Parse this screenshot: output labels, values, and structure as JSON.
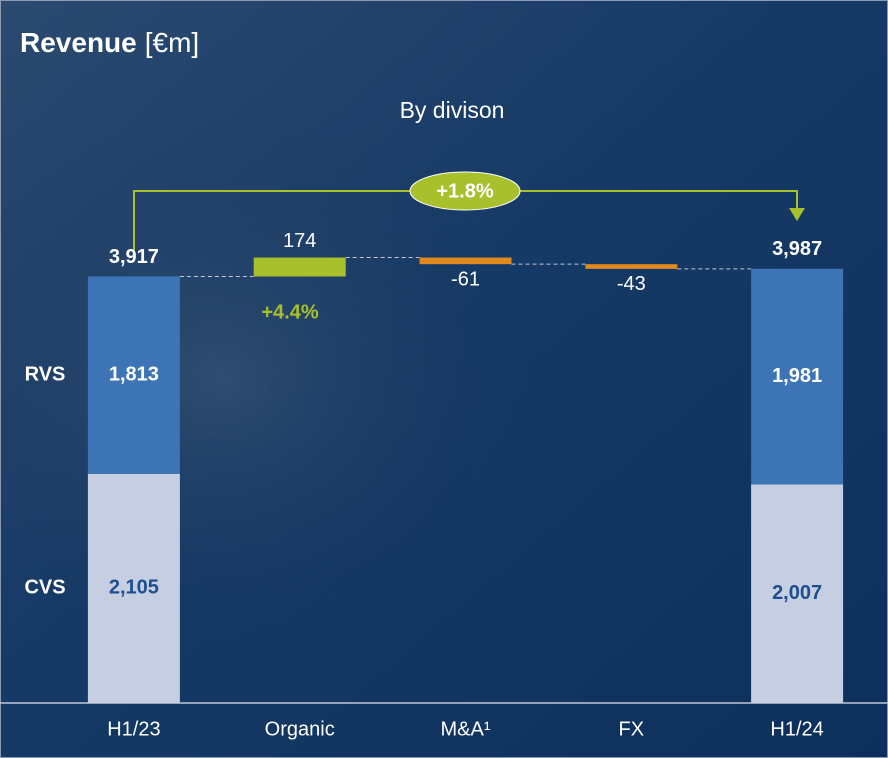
{
  "chart_data": {
    "type": "waterfall",
    "title": "Revenue",
    "unit": "[€m]",
    "subtitle": "By divison",
    "categories": [
      "H1/23",
      "Organic",
      "M&A¹",
      "FX",
      "H1/24"
    ],
    "series": [
      {
        "name": "CVS",
        "color": "#c6cee2",
        "values": [
          2105,
          null,
          null,
          null,
          2007
        ],
        "value_labels": [
          "2,105",
          null,
          null,
          null,
          "2,007"
        ]
      },
      {
        "name": "RVS",
        "color": "#3c74b6",
        "values": [
          1813,
          null,
          null,
          null,
          1981
        ],
        "value_labels": [
          "1,813",
          null,
          null,
          null,
          "1,981"
        ]
      }
    ],
    "totals": [
      3917,
      null,
      null,
      null,
      3987
    ],
    "total_labels": [
      "3,917",
      null,
      null,
      null,
      "3,987"
    ],
    "changes": [
      null,
      174,
      -61,
      -43,
      null
    ],
    "increase_color": "#a9c02d",
    "decrease_color": "#e0891d",
    "annotations": [
      {
        "text": "+4.4%"
      },
      {
        "text": "+1.8%"
      }
    ],
    "ylim": [
      0,
      4500
    ]
  }
}
